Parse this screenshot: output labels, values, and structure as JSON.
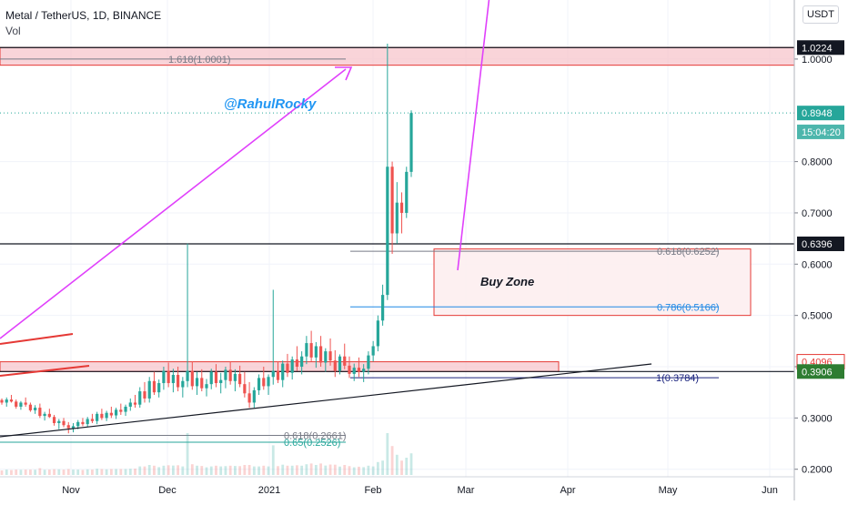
{
  "header": {
    "title": "Metal / TetherUS, 1D, BINANCE",
    "indicator": "Vol",
    "currency_button": "USDT"
  },
  "watermark": "@RahulRocky",
  "colors": {
    "up": "#26a69a",
    "down": "#ef5350",
    "arrow": "#e040fb",
    "black_line": "#131722",
    "zone_fill": "#f7c6cc",
    "zone_border": "#e53935",
    "fib_blue": "#1e88e5",
    "fib_navy": "#1a237e",
    "fib_green": "#26a69a",
    "fib_gray": "#787b86",
    "watermark": "#2196f3"
  },
  "chart_data": {
    "type": "candlestick",
    "x_ticks": [
      "Nov",
      "Dec",
      "2021",
      "Feb",
      "Mar",
      "Apr",
      "May",
      "Jun"
    ],
    "y_ticks": [
      "0.2000",
      "0.3000",
      "0.4000",
      "0.5000",
      "0.6000",
      "0.7000",
      "0.8000",
      "1.0000"
    ],
    "ylim": [
      0.19,
      1.1
    ],
    "price_tags": [
      {
        "label": "1.0224",
        "value": 1.0224,
        "style": "black"
      },
      {
        "label": "0.8948",
        "value": 0.8948,
        "style": "teal"
      },
      {
        "label": "15:04:20",
        "value": 0.858,
        "style": "teal-light"
      },
      {
        "label": "0.6396",
        "value": 0.6396,
        "style": "black"
      },
      {
        "label": "0.4096",
        "value": 0.4096,
        "style": "red"
      },
      {
        "label": "0.3906",
        "value": 0.3906,
        "style": "green"
      }
    ],
    "horizontal_lines": [
      {
        "value": 1.0224,
        "style": "black"
      },
      {
        "value": 0.6396,
        "style": "black"
      },
      {
        "value": 0.3906,
        "style": "black"
      },
      {
        "value": 0.8948,
        "style": "dotted-teal"
      }
    ],
    "fib_levels": [
      {
        "label": "1.618(1.0001)",
        "value": 1.0001,
        "color": "gray"
      },
      {
        "label": "0.618(0.6252)",
        "value": 0.6252,
        "color": "gray"
      },
      {
        "label": "0.786(0.5166)",
        "value": 0.5166,
        "color": "blue"
      },
      {
        "label": "1(0.3784)",
        "value": 0.3784,
        "color": "navy"
      },
      {
        "label": "0.618(0.2661)",
        "value": 0.2661,
        "color": "gray"
      },
      {
        "label": "0.65(0.2526)",
        "value": 0.2526,
        "color": "green"
      }
    ],
    "zones": [
      {
        "label": "Buy Zone",
        "top": 0.6296,
        "bottom": 0.5
      },
      {
        "label": "",
        "top": 1.0224,
        "bottom": 0.988
      },
      {
        "label": "",
        "top": 0.4096,
        "bottom": 0.3906
      }
    ],
    "candles_ohlc": [
      [
        0.335,
        0.338,
        0.326,
        0.33
      ],
      [
        0.33,
        0.34,
        0.322,
        0.336
      ],
      [
        0.336,
        0.345,
        0.33,
        0.332
      ],
      [
        0.332,
        0.336,
        0.318,
        0.322
      ],
      [
        0.322,
        0.333,
        0.316,
        0.33
      ],
      [
        0.33,
        0.34,
        0.322,
        0.326
      ],
      [
        0.326,
        0.33,
        0.312,
        0.315
      ],
      [
        0.315,
        0.325,
        0.308,
        0.32
      ],
      [
        0.32,
        0.328,
        0.3,
        0.304
      ],
      [
        0.304,
        0.312,
        0.295,
        0.308
      ],
      [
        0.308,
        0.318,
        0.3,
        0.302
      ],
      [
        0.302,
        0.306,
        0.285,
        0.29
      ],
      [
        0.29,
        0.298,
        0.278,
        0.294
      ],
      [
        0.294,
        0.3,
        0.282,
        0.286
      ],
      [
        0.286,
        0.292,
        0.27,
        0.28
      ],
      [
        0.28,
        0.29,
        0.272,
        0.284
      ],
      [
        0.284,
        0.296,
        0.278,
        0.292
      ],
      [
        0.292,
        0.3,
        0.284,
        0.288
      ],
      [
        0.288,
        0.302,
        0.282,
        0.298
      ],
      [
        0.298,
        0.308,
        0.29,
        0.294
      ],
      [
        0.294,
        0.312,
        0.288,
        0.308
      ],
      [
        0.308,
        0.318,
        0.296,
        0.3
      ],
      [
        0.3,
        0.314,
        0.294,
        0.31
      ],
      [
        0.31,
        0.322,
        0.3,
        0.305
      ],
      [
        0.305,
        0.32,
        0.298,
        0.316
      ],
      [
        0.316,
        0.328,
        0.306,
        0.312
      ],
      [
        0.312,
        0.326,
        0.304,
        0.322
      ],
      [
        0.322,
        0.338,
        0.314,
        0.33
      ],
      [
        0.33,
        0.345,
        0.32,
        0.326
      ],
      [
        0.326,
        0.36,
        0.32,
        0.352
      ],
      [
        0.352,
        0.37,
        0.33,
        0.338
      ],
      [
        0.338,
        0.38,
        0.33,
        0.372
      ],
      [
        0.372,
        0.39,
        0.345,
        0.35
      ],
      [
        0.35,
        0.375,
        0.34,
        0.368
      ],
      [
        0.368,
        0.4,
        0.355,
        0.392
      ],
      [
        0.392,
        0.408,
        0.36,
        0.368
      ],
      [
        0.368,
        0.396,
        0.35,
        0.384
      ],
      [
        0.384,
        0.4,
        0.352,
        0.36
      ],
      [
        0.36,
        0.38,
        0.34,
        0.372
      ],
      [
        0.372,
        0.64,
        0.36,
        0.392
      ],
      [
        0.392,
        0.41,
        0.355,
        0.362
      ],
      [
        0.362,
        0.39,
        0.345,
        0.378
      ],
      [
        0.378,
        0.395,
        0.352,
        0.358
      ],
      [
        0.358,
        0.376,
        0.342,
        0.366
      ],
      [
        0.366,
        0.396,
        0.356,
        0.39
      ],
      [
        0.39,
        0.405,
        0.36,
        0.368
      ],
      [
        0.368,
        0.388,
        0.348,
        0.374
      ],
      [
        0.374,
        0.4,
        0.358,
        0.394
      ],
      [
        0.394,
        0.41,
        0.365,
        0.372
      ],
      [
        0.372,
        0.395,
        0.352,
        0.386
      ],
      [
        0.386,
        0.402,
        0.36,
        0.366
      ],
      [
        0.366,
        0.39,
        0.34,
        0.348
      ],
      [
        0.348,
        0.37,
        0.32,
        0.33
      ],
      [
        0.33,
        0.36,
        0.32,
        0.354
      ],
      [
        0.354,
        0.385,
        0.345,
        0.378
      ],
      [
        0.378,
        0.4,
        0.355,
        0.362
      ],
      [
        0.362,
        0.385,
        0.345,
        0.38
      ],
      [
        0.38,
        0.55,
        0.365,
        0.392
      ],
      [
        0.392,
        0.41,
        0.368,
        0.374
      ],
      [
        0.374,
        0.412,
        0.36,
        0.406
      ],
      [
        0.406,
        0.425,
        0.38,
        0.388
      ],
      [
        0.388,
        0.42,
        0.375,
        0.414
      ],
      [
        0.414,
        0.44,
        0.392,
        0.4
      ],
      [
        0.4,
        0.43,
        0.385,
        0.42
      ],
      [
        0.42,
        0.46,
        0.405,
        0.446
      ],
      [
        0.446,
        0.47,
        0.41,
        0.418
      ],
      [
        0.418,
        0.448,
        0.398,
        0.44
      ],
      [
        0.44,
        0.46,
        0.4,
        0.408
      ],
      [
        0.408,
        0.436,
        0.39,
        0.43
      ],
      [
        0.43,
        0.455,
        0.402,
        0.412
      ],
      [
        0.412,
        0.432,
        0.38,
        0.392
      ],
      [
        0.392,
        0.424,
        0.385,
        0.42
      ],
      [
        0.42,
        0.445,
        0.395,
        0.402
      ],
      [
        0.402,
        0.42,
        0.378,
        0.386
      ],
      [
        0.386,
        0.406,
        0.372,
        0.398
      ],
      [
        0.398,
        0.418,
        0.38,
        0.39
      ],
      [
        0.39,
        0.405,
        0.37,
        0.396
      ],
      [
        0.396,
        0.43,
        0.385,
        0.422
      ],
      [
        0.422,
        0.45,
        0.41,
        0.44
      ],
      [
        0.44,
        0.5,
        0.43,
        0.49
      ],
      [
        0.49,
        0.56,
        0.48,
        0.54
      ],
      [
        0.54,
        1.03,
        0.53,
        0.79
      ],
      [
        0.79,
        0.8,
        0.62,
        0.66
      ],
      [
        0.66,
        0.76,
        0.64,
        0.72
      ],
      [
        0.72,
        0.74,
        0.66,
        0.7
      ],
      [
        0.7,
        0.79,
        0.69,
        0.78
      ],
      [
        0.78,
        0.9,
        0.77,
        0.8948
      ]
    ]
  }
}
